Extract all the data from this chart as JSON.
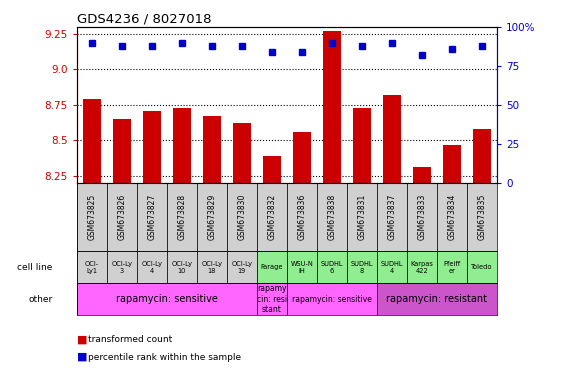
{
  "title": "GDS4236 / 8027018",
  "samples": [
    "GSM673825",
    "GSM673826",
    "GSM673827",
    "GSM673828",
    "GSM673829",
    "GSM673830",
    "GSM673832",
    "GSM673836",
    "GSM673838",
    "GSM673831",
    "GSM673837",
    "GSM673833",
    "GSM673834",
    "GSM673835"
  ],
  "bar_values": [
    8.79,
    8.65,
    8.71,
    8.73,
    8.67,
    8.62,
    8.39,
    8.56,
    9.27,
    8.73,
    8.82,
    8.31,
    8.47,
    8.58
  ],
  "dot_values": [
    90,
    88,
    88,
    90,
    88,
    88,
    84,
    84,
    90,
    88,
    90,
    82,
    86,
    88
  ],
  "ylim_left": [
    8.2,
    9.3
  ],
  "ylim_right": [
    0,
    100
  ],
  "yticks_left": [
    8.25,
    8.5,
    8.75,
    9.0,
    9.25
  ],
  "yticks_right": [
    0,
    25,
    50,
    75,
    100
  ],
  "cell_lines": [
    "OCI-\nLy1",
    "OCI-Ly\n3",
    "OCI-Ly\n4",
    "OCI-Ly\n10",
    "OCI-Ly\n18",
    "OCI-Ly\n19",
    "Farage",
    "WSU-N\nIH",
    "SUDHL\n6",
    "SUDHL\n8",
    "SUDHL\n4",
    "Karpas\n422",
    "Pfeiff\ner",
    "Toledo"
  ],
  "cell_line_colors": [
    "#d0d0d0",
    "#d0d0d0",
    "#d0d0d0",
    "#d0d0d0",
    "#d0d0d0",
    "#d0d0d0",
    "#90ee90",
    "#90ee90",
    "#90ee90",
    "#90ee90",
    "#90ee90",
    "#90ee90",
    "#90ee90",
    "#90ee90"
  ],
  "sample_bg_color": "#d0d0d0",
  "bar_color": "#cc0000",
  "dot_color": "#0000cc",
  "left_label_color": "#cc0000",
  "right_label_color": "#0000cc",
  "legend_transformed": "transformed count",
  "legend_percentile": "percentile rank within the sample",
  "row_label_cell_line": "cell line",
  "row_label_other": "other",
  "groups_other": [
    {
      "start": 0,
      "end": 5,
      "label": "rapamycin: sensitive",
      "color": "#ff66ff",
      "fontsize": 7
    },
    {
      "start": 6,
      "end": 6,
      "label": "rapamy\ncin: resi\nstant",
      "color": "#ff66ff",
      "fontsize": 5.5
    },
    {
      "start": 7,
      "end": 9,
      "label": "rapamycin: sensitive",
      "color": "#ff66ff",
      "fontsize": 5.5
    },
    {
      "start": 10,
      "end": 13,
      "label": "rapamycin: resistant",
      "color": "#cc55cc",
      "fontsize": 7
    }
  ]
}
